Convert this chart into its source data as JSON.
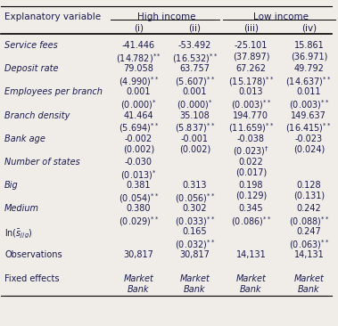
{
  "col_header_row1": [
    "Explanatory variable",
    "High income",
    "Low income"
  ],
  "col_header_row2": [
    "",
    "(i)",
    "(ii)",
    "(iii)",
    "(iv)"
  ],
  "rows": [
    {
      "var": "Service fees",
      "italic": true,
      "vals": [
        [
          "-41.446",
          "(14.782)**"
        ],
        [
          "-53.492",
          "(16.532)**"
        ],
        [
          "-25.101",
          "(37.897)"
        ],
        [
          "15.861",
          "(36.971)"
        ]
      ]
    },
    {
      "var": "Deposit rate",
      "italic": true,
      "vals": [
        [
          "79.058",
          "(4.990)**"
        ],
        [
          "63.757",
          "(5.607)**"
        ],
        [
          "67.262",
          "(15.178)**"
        ],
        [
          "49.792",
          "(14.637)**"
        ]
      ]
    },
    {
      "var": "Employees per branch",
      "italic": true,
      "vals": [
        [
          "0.001",
          "(0.000)*"
        ],
        [
          "0.001",
          "(0.000)*"
        ],
        [
          "0.013",
          "(0.003)**"
        ],
        [
          "0.011",
          "(0.003)**"
        ]
      ]
    },
    {
      "var": "Branch density",
      "italic": true,
      "vals": [
        [
          "41.464",
          "(5.694)**"
        ],
        [
          "35.108",
          "(5.837)**"
        ],
        [
          "194.770",
          "(11.659)**"
        ],
        [
          "149.637",
          "(16.415)**"
        ]
      ]
    },
    {
      "var": "Bank age",
      "italic": true,
      "vals": [
        [
          "-0.002",
          "(0.002)"
        ],
        [
          "-0.001",
          "(0.002)"
        ],
        [
          "-0.038",
          "(0.023)†"
        ],
        [
          "-0.023",
          "(0.024)"
        ]
      ]
    },
    {
      "var": "Number of states",
      "italic": true,
      "vals": [
        [
          "-0.030",
          "(0.013)*"
        ],
        [
          "",
          ""
        ],
        [
          "0.022",
          "(0.017)"
        ],
        [
          "",
          ""
        ]
      ]
    },
    {
      "var": "Big",
      "italic": true,
      "vals": [
        [
          "0.381",
          "(0.054)**"
        ],
        [
          "0.313",
          "(0.056)**"
        ],
        [
          "0.198",
          "(0.129)"
        ],
        [
          "0.128",
          "(0.131)"
        ]
      ]
    },
    {
      "var": "Medium",
      "italic": true,
      "vals": [
        [
          "0.380",
          "(0.029)**"
        ],
        [
          "0.302",
          "(0.033)**"
        ],
        [
          "0.345",
          "(0.086)**"
        ],
        [
          "0.242",
          "(0.088)**"
        ]
      ]
    },
    {
      "var": "ln(s_bar)",
      "italic": false,
      "vals": [
        [
          "",
          ""
        ],
        [
          "0.165",
          "(0.032)**"
        ],
        [
          "",
          ""
        ],
        [
          "0.247",
          "(0.063)**"
        ]
      ]
    },
    {
      "var": "Observations",
      "italic": false,
      "vals": [
        [
          "30,817",
          ""
        ],
        [
          "30,817",
          ""
        ],
        [
          "14,131",
          ""
        ],
        [
          "14,131",
          ""
        ]
      ]
    },
    {
      "var": "Fixed effects",
      "italic": false,
      "vals": [
        [
          "Market",
          "Bank"
        ],
        [
          "Market",
          "Bank"
        ],
        [
          "Market",
          "Bank"
        ],
        [
          "Market",
          "Bank"
        ]
      ]
    }
  ],
  "figsize": [
    3.79,
    3.66
  ],
  "dpi": 100,
  "bg_color": "#f0ede8",
  "text_color": "#1a1a4e"
}
